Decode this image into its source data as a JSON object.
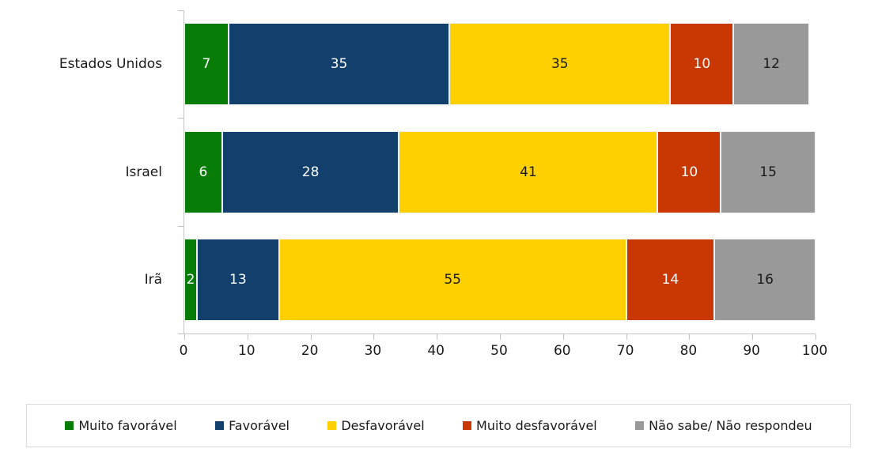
{
  "chart_data": {
    "type": "bar",
    "orientation": "horizontal",
    "stacked": true,
    "title": "",
    "xlabel": "",
    "ylabel": "",
    "grid": false,
    "legend_position": "bottom",
    "xlim": [
      0,
      100
    ],
    "xticks": [
      0,
      10,
      20,
      30,
      40,
      50,
      60,
      70,
      80,
      90,
      100
    ],
    "categories": [
      "Estados Unidos",
      "Israel",
      "Irã"
    ],
    "series": [
      {
        "name": "Muito favorável",
        "color": "#077D07",
        "label_color": "#ffffff",
        "values": [
          7,
          6,
          2
        ]
      },
      {
        "name": "Favorável",
        "color": "#123F6B",
        "label_color": "#ffffff",
        "values": [
          35,
          28,
          13
        ]
      },
      {
        "name": "Desfavorável",
        "color": "#FFD000",
        "label_color": "#1a1a1a",
        "values": [
          35,
          41,
          55
        ]
      },
      {
        "name": "Muito desfavorável",
        "color": "#C93703",
        "label_color": "#ffffff",
        "values": [
          10,
          10,
          14
        ]
      },
      {
        "name": "Não sabe/ Não respondeu",
        "color": "#999999",
        "label_color": "#1a1a1a",
        "values": [
          12,
          15,
          16
        ]
      }
    ],
    "axis_color": "#c3c3c3"
  }
}
